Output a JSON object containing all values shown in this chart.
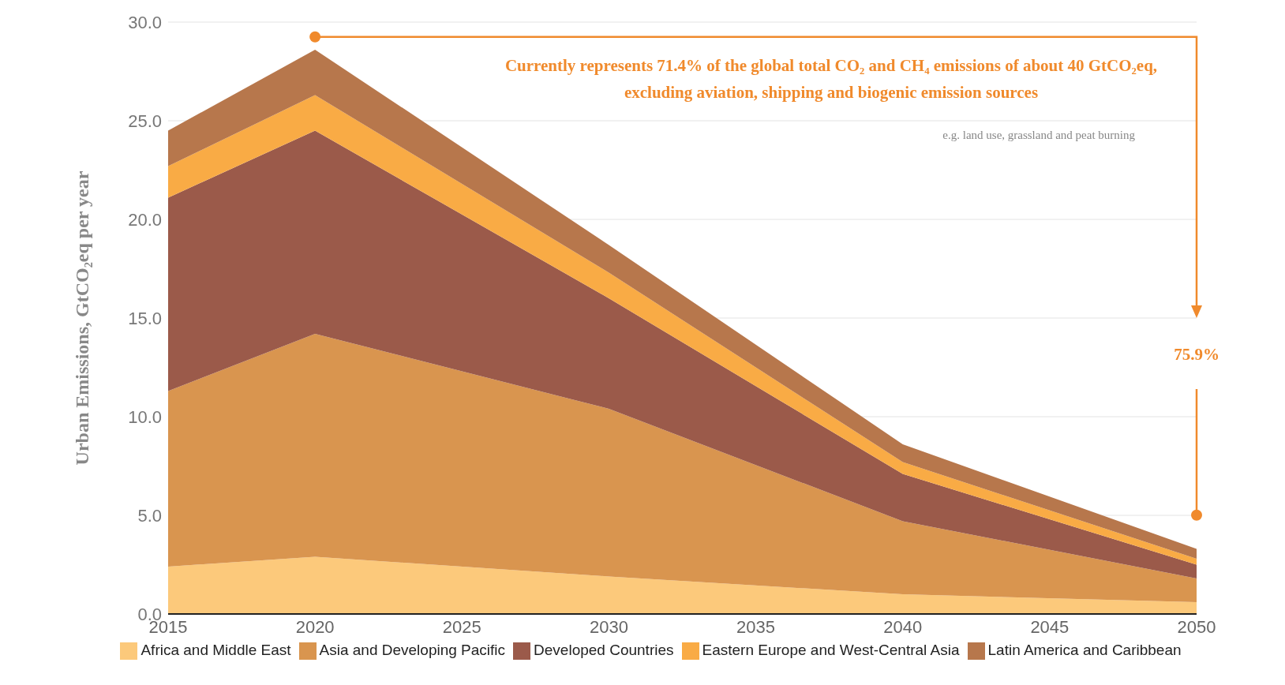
{
  "chart_data": {
    "type": "area",
    "stacked": true,
    "ylabel": "Urban Emissions, GtCO₂eq per year",
    "x": [
      2015,
      2020,
      2030,
      2040,
      2050
    ],
    "xlim": [
      2015,
      2050
    ],
    "xticks": [
      2015,
      2020,
      2025,
      2030,
      2035,
      2040,
      2045,
      2050
    ],
    "ylim": [
      0,
      30
    ],
    "yticks": [
      {
        "value": 0,
        "label": "0.0"
      },
      {
        "value": 5,
        "label": "5.0"
      },
      {
        "value": 10,
        "label": "10.0"
      },
      {
        "value": 15,
        "label": "15.0"
      },
      {
        "value": 20,
        "label": "20.0"
      },
      {
        "value": 25,
        "label": "25.0"
      },
      {
        "value": 30,
        "label": "30.0"
      }
    ],
    "grid": "y",
    "legend": "bottom",
    "series": [
      {
        "name": "Africa and Middle East",
        "color": "#fcc97b",
        "values": [
          2.4,
          2.9,
          1.9,
          1.0,
          0.6
        ]
      },
      {
        "name": "Asia and Developing Pacific",
        "color": "#d9954f",
        "values": [
          8.9,
          11.3,
          8.5,
          3.7,
          1.2
        ]
      },
      {
        "name": "Developed Countries",
        "color": "#9b5a4a",
        "values": [
          9.8,
          10.3,
          5.6,
          2.4,
          0.7
        ]
      },
      {
        "name": "Eastern Europe and West-Central Asia",
        "color": "#f9ab45",
        "values": [
          1.6,
          1.8,
          1.3,
          0.6,
          0.3
        ]
      },
      {
        "name": "Latin America and Caribbean",
        "color": "#b7774c",
        "values": [
          1.8,
          2.3,
          1.4,
          0.9,
          0.5
        ]
      }
    ],
    "annotations": [
      "Currently represents 71.4% of the global total CO₂ and CH₄ emissions of about 40 GtCO₂eq, excluding aviation, shipping and biogenic emission sources",
      "e.g. land use, grassland and peat burning",
      "75.9%"
    ]
  }
}
